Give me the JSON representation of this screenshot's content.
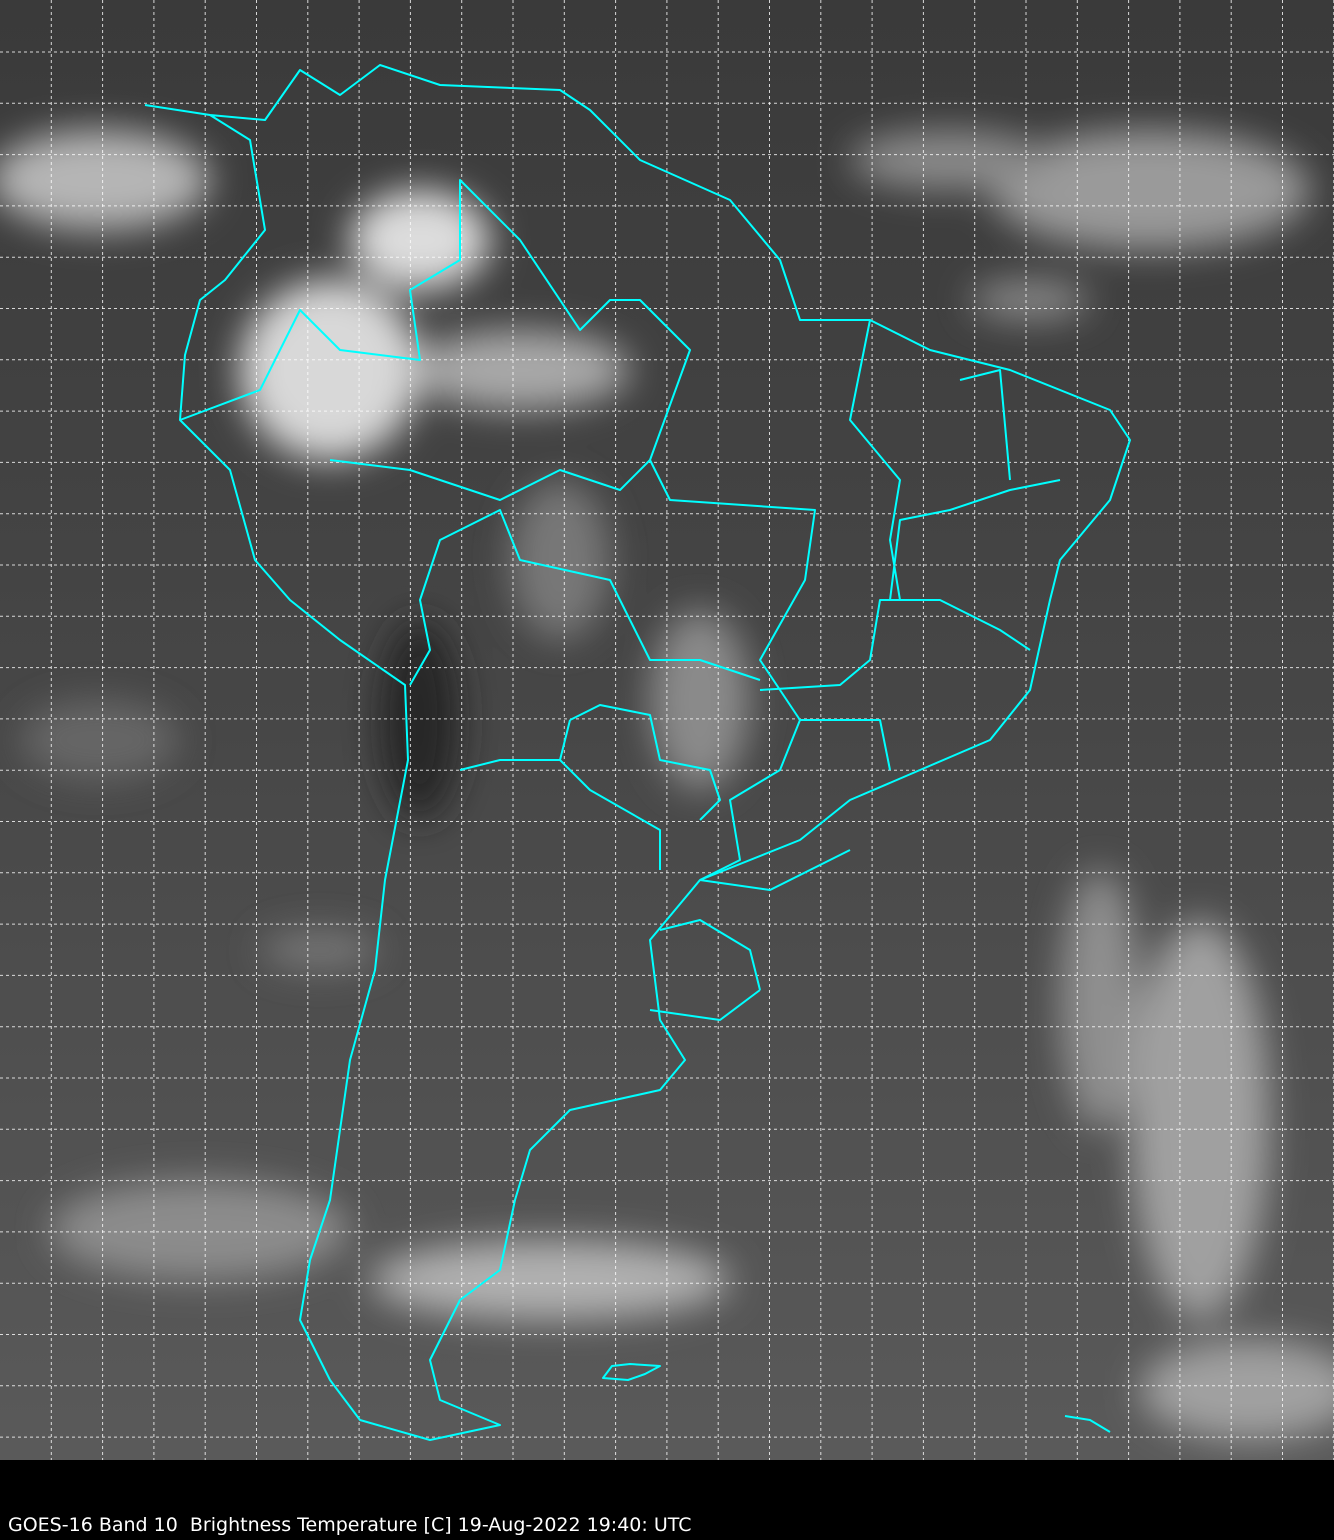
{
  "caption": "GOES-16 Band 10  Brightness Temperature [C] 19-Aug-2022 19:40: UTC",
  "colors": {
    "background": "#000000",
    "imagery_base": "#3c3c3c",
    "coastline": "#00ffff",
    "grid": "#ffffff",
    "caption_text": "#ffffff"
  },
  "map": {
    "region": "South America",
    "gridlines": true,
    "grid_style": "dashed",
    "colormap": "grayscale"
  }
}
